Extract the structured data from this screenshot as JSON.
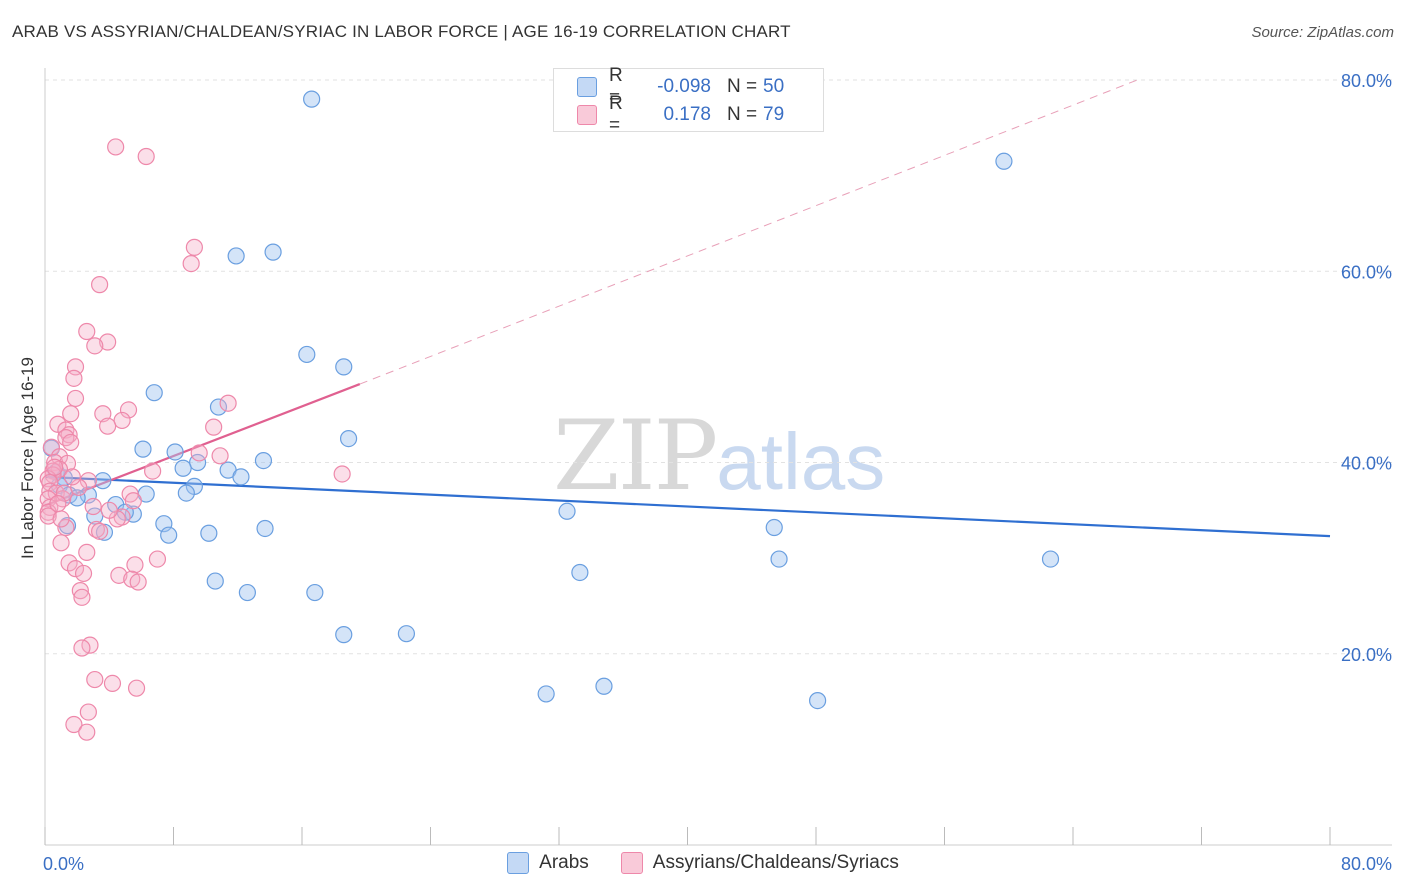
{
  "title": "ARAB VS ASSYRIAN/CHALDEAN/SYRIAC IN LABOR FORCE | AGE 16-19 CORRELATION CHART",
  "source": "Source: ZipAtlas.com",
  "watermark": {
    "zip": "ZIP",
    "atlas": "atlas"
  },
  "legend_top": [
    {
      "r_label": "R =",
      "r_value": "-0.098",
      "n_label": "N =",
      "n_value": "50"
    },
    {
      "r_label": "R =",
      "r_value": "0.178",
      "n_label": "N =",
      "n_value": "79"
    }
  ],
  "chart_data": {
    "type": "scatter",
    "title": "ARAB VS ASSYRIAN/CHALDEAN/SYRIAC IN LABOR FORCE | AGE 16-19 CORRELATION CHART",
    "xlabel": "",
    "ylabel": "In Labor Force | Age 16-19",
    "xlim": [
      0,
      80
    ],
    "ylim": [
      0,
      80
    ],
    "x_tick_labels": [
      "0.0%",
      "80.0%"
    ],
    "y_ticks": [
      20,
      40,
      60,
      80
    ],
    "y_tick_labels": [
      "20.0%",
      "40.0%",
      "60.0%",
      "80.0%"
    ],
    "grid": true,
    "legend_position": "bottom",
    "colors": {
      "arabs": "#6a9fe0",
      "assyrians": "#ee88aa",
      "arabs_line": "#2f6fd1",
      "assyrians_line": "#e06090"
    },
    "series": [
      {
        "name": "Arabs",
        "r": -0.098,
        "n": 50,
        "trend": {
          "x": [
            0,
            80
          ],
          "y": [
            38.5,
            32.3
          ]
        },
        "points": [
          [
            16.6,
            78.0
          ],
          [
            59.7,
            71.5
          ],
          [
            14.2,
            62.0
          ],
          [
            11.9,
            61.6
          ],
          [
            16.3,
            51.3
          ],
          [
            18.6,
            50.0
          ],
          [
            6.8,
            47.3
          ],
          [
            10.8,
            45.8
          ],
          [
            18.9,
            42.5
          ],
          [
            6.1,
            41.4
          ],
          [
            8.1,
            41.1
          ],
          [
            13.6,
            40.2
          ],
          [
            9.5,
            40.0
          ],
          [
            8.6,
            39.4
          ],
          [
            11.4,
            39.2
          ],
          [
            12.2,
            38.5
          ],
          [
            0.4,
            41.5
          ],
          [
            0.7,
            39.0
          ],
          [
            1.2,
            38.4
          ],
          [
            3.6,
            38.1
          ],
          [
            0.9,
            37.6
          ],
          [
            9.3,
            37.5
          ],
          [
            1.5,
            36.6
          ],
          [
            2.7,
            36.6
          ],
          [
            6.3,
            36.7
          ],
          [
            8.8,
            36.8
          ],
          [
            2.0,
            36.3
          ],
          [
            4.4,
            35.6
          ],
          [
            5.5,
            34.6
          ],
          [
            3.1,
            34.4
          ],
          [
            5.0,
            34.8
          ],
          [
            7.4,
            33.6
          ],
          [
            1.4,
            33.4
          ],
          [
            3.7,
            32.7
          ],
          [
            10.2,
            32.6
          ],
          [
            13.7,
            33.1
          ],
          [
            32.5,
            34.9
          ],
          [
            45.4,
            33.2
          ],
          [
            45.7,
            29.9
          ],
          [
            62.6,
            29.9
          ],
          [
            7.7,
            32.4
          ],
          [
            33.3,
            28.5
          ],
          [
            10.6,
            27.6
          ],
          [
            12.6,
            26.4
          ],
          [
            16.8,
            26.4
          ],
          [
            18.6,
            22.0
          ],
          [
            22.5,
            22.1
          ],
          [
            31.2,
            15.8
          ],
          [
            34.8,
            16.6
          ],
          [
            48.1,
            15.1
          ]
        ]
      },
      {
        "name": "Assyrians/Chaldeans/Syriacs",
        "r": 0.178,
        "n": 79,
        "trend": {
          "x": [
            0,
            19.6
          ],
          "y": [
            35.5,
            48.2
          ]
        },
        "trend_dashed": {
          "x": [
            19.6,
            68.0
          ],
          "y": [
            48.2,
            80.0
          ]
        },
        "points": [
          [
            4.4,
            73.0
          ],
          [
            6.3,
            72.0
          ],
          [
            9.3,
            62.5
          ],
          [
            9.1,
            60.8
          ],
          [
            3.4,
            58.6
          ],
          [
            2.6,
            53.7
          ],
          [
            3.9,
            52.6
          ],
          [
            3.1,
            52.2
          ],
          [
            1.9,
            50.0
          ],
          [
            1.8,
            48.8
          ],
          [
            11.4,
            46.2
          ],
          [
            1.9,
            46.7
          ],
          [
            5.2,
            45.5
          ],
          [
            3.6,
            45.1
          ],
          [
            1.6,
            45.1
          ],
          [
            0.8,
            44.0
          ],
          [
            4.8,
            44.4
          ],
          [
            10.5,
            43.7
          ],
          [
            3.9,
            43.8
          ],
          [
            1.3,
            43.4
          ],
          [
            1.5,
            42.9
          ],
          [
            1.3,
            42.6
          ],
          [
            1.6,
            42.1
          ],
          [
            0.4,
            41.6
          ],
          [
            9.6,
            41.0
          ],
          [
            10.9,
            40.7
          ],
          [
            0.9,
            40.6
          ],
          [
            0.6,
            40.0
          ],
          [
            1.4,
            39.9
          ],
          [
            0.9,
            39.3
          ],
          [
            0.5,
            39.1
          ],
          [
            6.7,
            39.1
          ],
          [
            0.5,
            38.7
          ],
          [
            18.5,
            38.8
          ],
          [
            0.2,
            38.3
          ],
          [
            0.3,
            37.9
          ],
          [
            2.7,
            38.1
          ],
          [
            0.3,
            37.0
          ],
          [
            5.3,
            36.7
          ],
          [
            0.7,
            36.8
          ],
          [
            1.1,
            36.2
          ],
          [
            0.2,
            36.2
          ],
          [
            5.5,
            36.0
          ],
          [
            0.3,
            35.3
          ],
          [
            3.0,
            35.4
          ],
          [
            0.2,
            34.8
          ],
          [
            0.2,
            34.4
          ],
          [
            4.8,
            34.3
          ],
          [
            4.5,
            34.1
          ],
          [
            1.3,
            33.2
          ],
          [
            3.2,
            33.0
          ],
          [
            3.4,
            32.8
          ],
          [
            1.0,
            31.6
          ],
          [
            2.6,
            30.6
          ],
          [
            7.0,
            29.9
          ],
          [
            1.5,
            29.5
          ],
          [
            5.6,
            29.3
          ],
          [
            1.9,
            28.9
          ],
          [
            2.4,
            28.4
          ],
          [
            4.6,
            28.2
          ],
          [
            5.4,
            27.8
          ],
          [
            5.8,
            27.5
          ],
          [
            2.2,
            26.6
          ],
          [
            2.3,
            25.9
          ],
          [
            2.8,
            20.9
          ],
          [
            2.3,
            20.6
          ],
          [
            3.1,
            17.3
          ],
          [
            4.2,
            16.9
          ],
          [
            5.7,
            16.4
          ],
          [
            2.7,
            13.9
          ],
          [
            1.8,
            12.6
          ],
          [
            2.6,
            11.8
          ],
          [
            1.2,
            36.8
          ],
          [
            0.6,
            39.5
          ],
          [
            2.1,
            37.4
          ],
          [
            1.0,
            34.1
          ],
          [
            0.8,
            35.7
          ],
          [
            4.0,
            35.0
          ],
          [
            1.7,
            38.5
          ]
        ]
      }
    ]
  }
}
